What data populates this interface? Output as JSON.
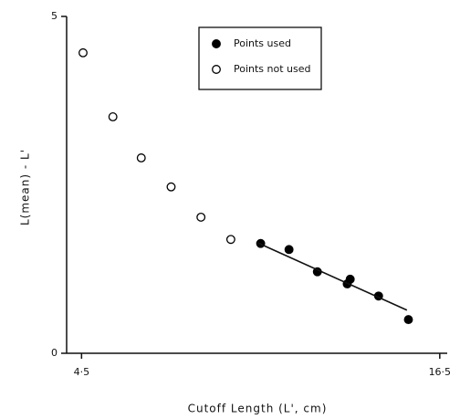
{
  "chart_data": {
    "type": "scatter",
    "xlabel": "Cutoff Length (L', cm)",
    "ylabel": "L(mean) - L'",
    "xlim": [
      4.0,
      16.75
    ],
    "ylim": [
      0,
      5
    ],
    "xticks": [
      {
        "value": 4.5,
        "label": "4·5"
      },
      {
        "value": 16.5,
        "label": "16·5"
      }
    ],
    "yticks": [
      0,
      5
    ],
    "legend": "top-right",
    "series": [
      {
        "name": "Points used",
        "color": "#000000",
        "filled": true,
        "x": [
          10.5,
          11.45,
          12.4,
          13.4,
          13.5,
          14.45,
          15.45
        ],
        "values": [
          1.63,
          1.54,
          1.21,
          1.03,
          1.1,
          0.85,
          0.5
        ]
      },
      {
        "name": "Points not used",
        "color": "#000000",
        "filled": false,
        "x": [
          4.55,
          5.55,
          6.5,
          7.5,
          8.5,
          9.5
        ],
        "values": [
          4.46,
          3.51,
          2.9,
          2.47,
          2.02,
          1.69
        ]
      }
    ],
    "fit_line": {
      "x": [
        10.4,
        15.4
      ],
      "values": [
        1.64,
        0.64
      ]
    }
  }
}
